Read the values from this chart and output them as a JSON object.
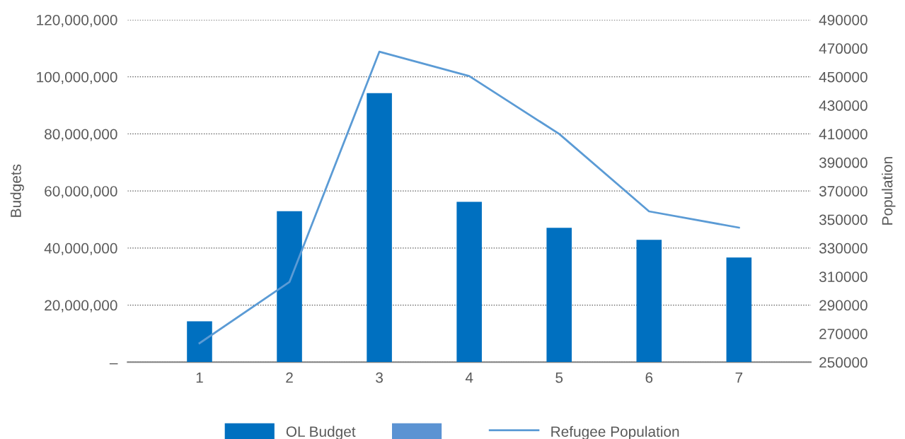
{
  "chart_data": {
    "type": "bar",
    "categories": [
      "1",
      "2",
      "3",
      "4",
      "5",
      "6",
      "7"
    ],
    "ylabel": "Budgets",
    "y2label": "Population",
    "series": [
      {
        "name": "OL Budget",
        "color": "#0070c0",
        "values": [
          14300000,
          52900000,
          94300000,
          56200000,
          47100000,
          42900000,
          36700000
        ]
      },
      {
        "color": "#5b93d3",
        "values": [
          null,
          null,
          null,
          null,
          null,
          null,
          null
        ]
      },
      {
        "name": "Refugee Population",
        "type": "line",
        "axis": "y2",
        "color": "#5b9bd5",
        "values": [
          263300,
          306200,
          467600,
          450500,
          410000,
          355700,
          344300
        ]
      }
    ],
    "ylim": [
      0,
      120000000
    ],
    "yticks": [
      {
        "value": 0,
        "label": "–"
      },
      {
        "value": 20000000,
        "label": "20,000,000"
      },
      {
        "value": 40000000,
        "label": "40,000,000"
      },
      {
        "value": 60000000,
        "label": "60,000,000"
      },
      {
        "value": 80000000,
        "label": "80,000,000"
      },
      {
        "value": 100000000,
        "label": "100,000,000"
      },
      {
        "value": 120000000,
        "label": "120,000,000"
      }
    ],
    "y2lim": [
      250000,
      490000
    ],
    "y2ticks": [
      250000,
      270000,
      290000,
      310000,
      330000,
      350000,
      370000,
      390000,
      410000,
      430000,
      450000,
      470000,
      490000
    ],
    "grid": "y",
    "legend": "bottom",
    "marker": "none",
    "line_style": "solid"
  }
}
